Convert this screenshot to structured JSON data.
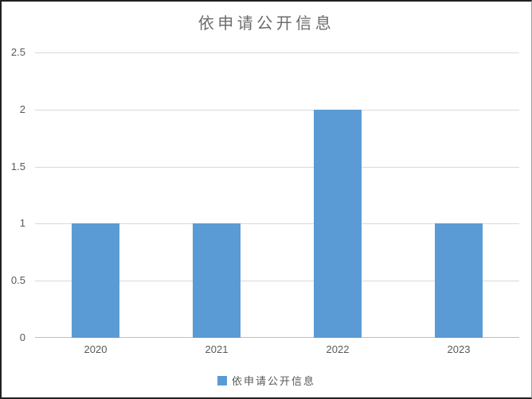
{
  "chart_data": {
    "type": "bar",
    "title": "依申请公开信息",
    "categories": [
      "2020",
      "2021",
      "2022",
      "2023"
    ],
    "values": [
      1,
      1,
      2,
      1
    ],
    "series": [
      {
        "name": "依申请公开信息",
        "values": [
          1,
          1,
          2,
          1
        ]
      }
    ],
    "xlabel": "",
    "ylabel": "",
    "ylim": [
      0,
      2.5
    ],
    "ytick_interval": 0.5,
    "ytick_labels": [
      "0",
      "0.5",
      "1",
      "1.5",
      "2",
      "2.5"
    ],
    "grid": true,
    "legend_position": "bottom",
    "legend": [
      {
        "label": "依申请公开信息",
        "color": "#5B9BD5"
      }
    ],
    "colors": {
      "bar": "#5B9BD5",
      "gridline": "#D9D9D9",
      "axis_line": "#BFBFBF",
      "tick_label": "#595959",
      "title": "#6B6B6B",
      "legend_text": "#595959",
      "window_border": "#212121"
    }
  }
}
